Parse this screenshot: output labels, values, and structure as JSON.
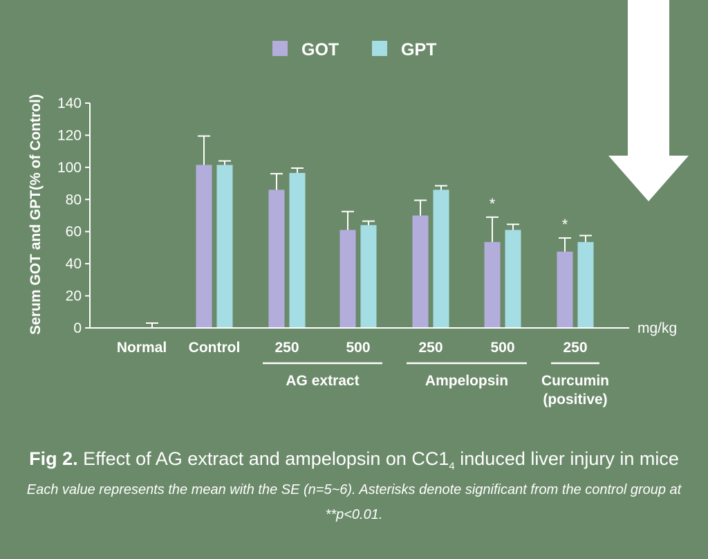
{
  "chart_data": {
    "type": "bar",
    "categories": [
      "Normal",
      "Control",
      "250",
      "500",
      "250",
      "500",
      "250"
    ],
    "groups": [
      {
        "label": "AG extract",
        "from": 2,
        "to": 3
      },
      {
        "label": "Ampelopsin",
        "from": 4,
        "to": 5
      },
      {
        "label": "Curcumin\n(positive)",
        "from": 6,
        "to": 6
      }
    ],
    "series": [
      {
        "name": "GOT",
        "color": "#b3addb",
        "values": [
          0,
          101.5,
          86,
          61,
          70,
          53.5,
          47.5
        ],
        "errors": [
          0,
          18,
          10,
          11.5,
          9.5,
          15.5,
          8.5
        ]
      },
      {
        "name": "GPT",
        "color": "#a5dde4",
        "values": [
          0,
          101.5,
          96.5,
          64,
          86,
          61,
          53.5
        ],
        "errors": [
          3,
          2.5,
          3,
          2.5,
          2.5,
          3.5,
          4
        ]
      }
    ],
    "significance": [
      {
        "category_index": 5,
        "series": "GOT",
        "label": "*"
      },
      {
        "category_index": 6,
        "series": "GOT",
        "label": "*"
      }
    ],
    "ylabel": "Serum GOT and GPT(% of Control)",
    "xunit": "mg/kg",
    "ylim": [
      0,
      140
    ],
    "yticks": [
      0,
      20,
      40,
      60,
      80,
      100,
      120,
      140
    ],
    "legend_position": "top"
  },
  "caption": {
    "fig_label": "Fig 2.",
    "title_before": "Effect of AG extract and ampelopsin on CC1",
    "subscript": "4",
    "title_after": " induced liver injury in mice",
    "note": "Each value represents the mean with the SE (n=5~6). Asterisks denote significant from the control group at **p<0.01."
  },
  "decor": {
    "arrow_color": "#ffffff"
  }
}
